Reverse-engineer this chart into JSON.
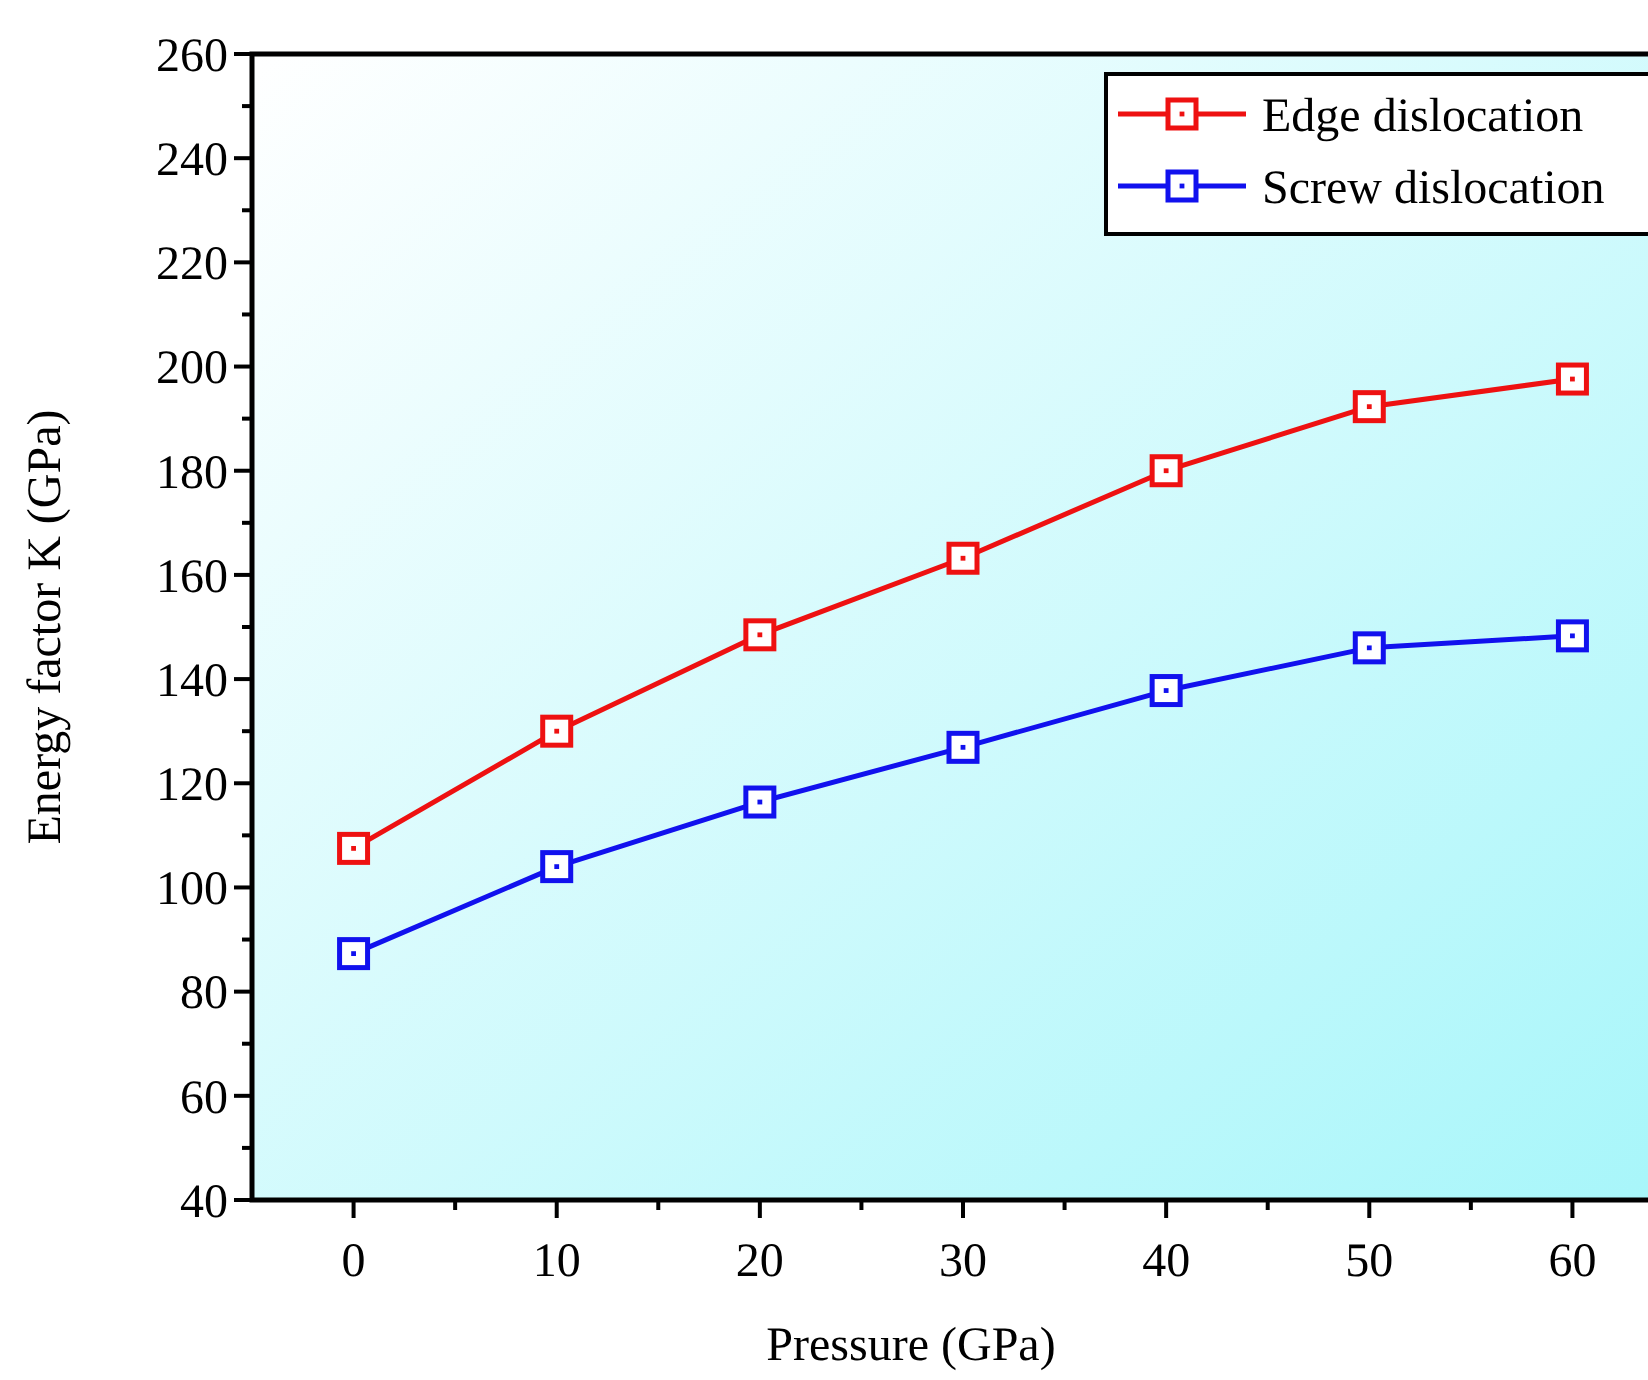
{
  "chart_data": {
    "type": "line",
    "xlabel": "Pressure (GPa)",
    "ylabel": "Energy factor K (GPa)",
    "x": [
      0,
      10,
      20,
      30,
      40,
      50,
      60
    ],
    "series": [
      {
        "name": "Edge dislocation",
        "color": "#ee1111",
        "values": [
          107.5,
          130,
          148.5,
          163.2,
          180,
          192.3,
          197.6
        ]
      },
      {
        "name": "Screw dislocation",
        "color": "#1111ee",
        "values": [
          87.3,
          104,
          116.4,
          126.9,
          137.8,
          146,
          148.3
        ]
      }
    ],
    "xlim": [
      -5,
      65
    ],
    "xticks": [
      0,
      {
        "value": 5,
        "label": null
      },
      10,
      {
        "value": 15,
        "label": null
      },
      20,
      {
        "value": 25,
        "label": null
      },
      30,
      {
        "value": 35,
        "label": null
      },
      40,
      {
        "value": 45,
        "label": null
      },
      50,
      {
        "value": 55,
        "label": null
      },
      60
    ],
    "ylim": [
      40,
      260
    ],
    "yticks": [
      40,
      {
        "value": 50,
        "label": null
      },
      60,
      {
        "value": 70,
        "label": null
      },
      80,
      {
        "value": 90,
        "label": null
      },
      100,
      {
        "value": 110,
        "label": null
      },
      120,
      {
        "value": 130,
        "label": null
      },
      140,
      {
        "value": 150,
        "label": null
      },
      160,
      {
        "value": 170,
        "label": null
      },
      180,
      {
        "value": 190,
        "label": null
      },
      200,
      {
        "value": 210,
        "label": null
      },
      220,
      {
        "value": 230,
        "label": null
      },
      240,
      {
        "value": 250,
        "label": null
      },
      260
    ],
    "marker": "square",
    "line_style": "solid",
    "grid": false,
    "legend": "top right"
  }
}
